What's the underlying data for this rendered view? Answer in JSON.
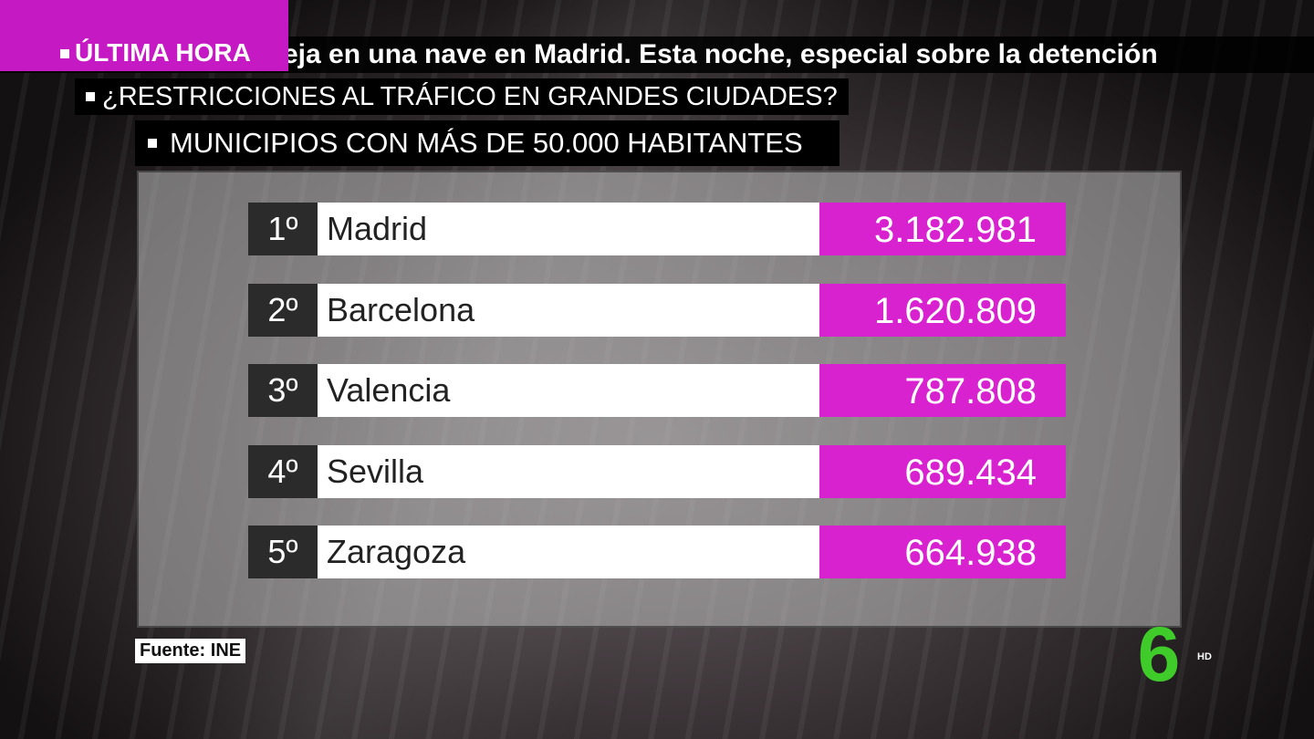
{
  "ticker": {
    "label": "ÚLTIMA HORA",
    "text": "eja en una nave en Madrid. Esta noche, especial sobre la detención"
  },
  "headline": "¿RESTRICCIONES AL TRÁFICO EN GRANDES CIUDADES?",
  "table": {
    "title": "MUNICIPIOS CON MÁS DE 50.000 HABITANTES",
    "rows": [
      [
        "1º",
        "Madrid",
        "3.182.981"
      ],
      [
        "2º",
        "Barcelona",
        "1.620.809"
      ],
      [
        "3º",
        "Valencia",
        "787.808"
      ],
      [
        "4º",
        "Sevilla",
        "689.434"
      ],
      [
        "5º",
        "Zaragoza",
        "664.938"
      ]
    ]
  },
  "source": "Fuente: INE",
  "logo": {
    "mark": "6",
    "badge": "HD"
  }
}
